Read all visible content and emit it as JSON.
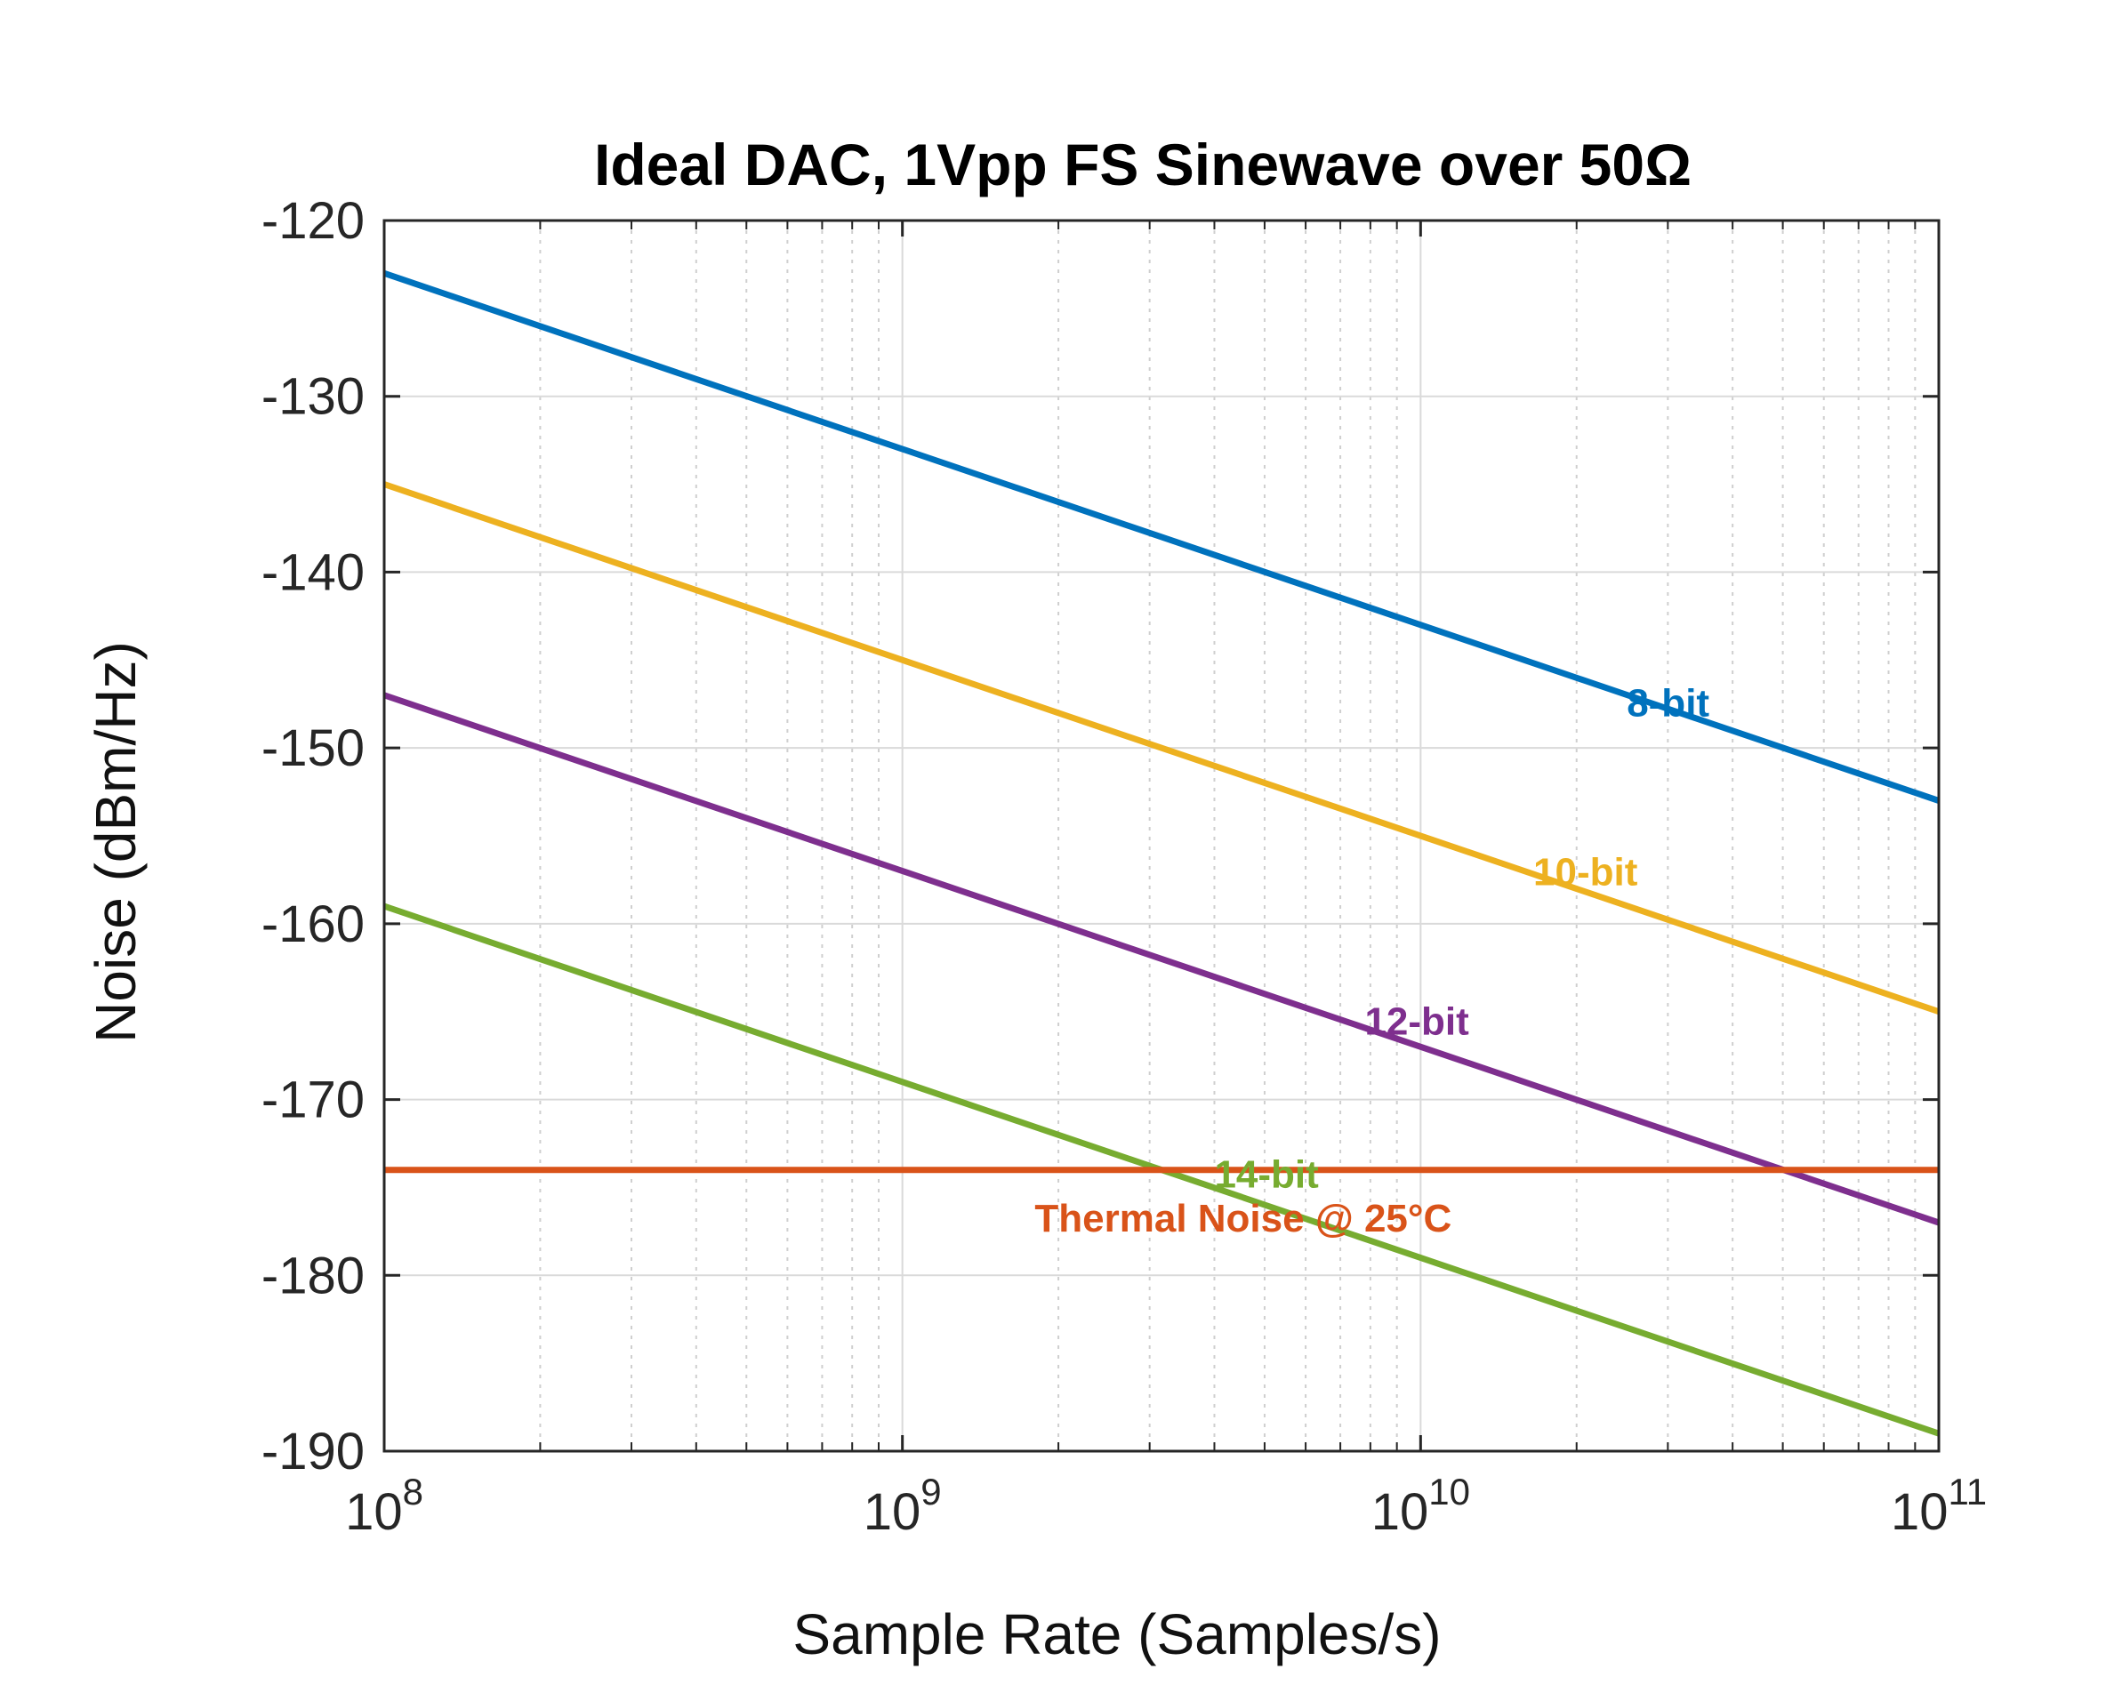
{
  "chart_data": {
    "type": "line",
    "title": "Ideal DAC, 1Vpp FS Sinewave over 50Ω",
    "xlabel": "Sample Rate (Samples/s)",
    "ylabel": "Noise (dBm/Hz)",
    "xscale": "log",
    "xlim": [
      100000000,
      100000000000
    ],
    "ylim": [
      -190,
      -120
    ],
    "grid": true,
    "x_ticks": [
      {
        "value": 100000000,
        "base": "10",
        "exp": "8"
      },
      {
        "value": 1000000000,
        "base": "10",
        "exp": "9"
      },
      {
        "value": 10000000000,
        "base": "10",
        "exp": "10"
      },
      {
        "value": 100000000000,
        "base": "10",
        "exp": "11"
      }
    ],
    "y_ticks": [
      -120,
      -130,
      -140,
      -150,
      -160,
      -170,
      -180,
      -190
    ],
    "series": [
      {
        "name": "8-bit",
        "color": "#0072BD",
        "x": [
          100000000,
          100000000000
        ],
        "values": [
          -123.0,
          -153.0
        ],
        "label_pos": [
          25000000000,
          -148.2
        ]
      },
      {
        "name": "10-bit",
        "color": "#EDB120",
        "x": [
          100000000,
          100000000000
        ],
        "values": [
          -135.0,
          -165.0
        ],
        "label_pos": [
          16500000000,
          -157.8
        ]
      },
      {
        "name": "12-bit",
        "color": "#7E2F8E",
        "x": [
          100000000,
          100000000000
        ],
        "values": [
          -147.0,
          -177.0
        ],
        "label_pos": [
          7800000000,
          -166.3
        ]
      },
      {
        "name": "14-bit",
        "color": "#77AC30",
        "x": [
          100000000,
          100000000000
        ],
        "values": [
          -159.0,
          -189.0
        ],
        "label_pos": [
          4000000000,
          -175.0
        ]
      },
      {
        "name": "Thermal Noise @ 25°C",
        "color": "#D95319",
        "x": [
          100000000,
          100000000000
        ],
        "values": [
          -174.0,
          -174.0
        ],
        "label_pos": [
          1800000000,
          -177.5
        ]
      }
    ]
  }
}
